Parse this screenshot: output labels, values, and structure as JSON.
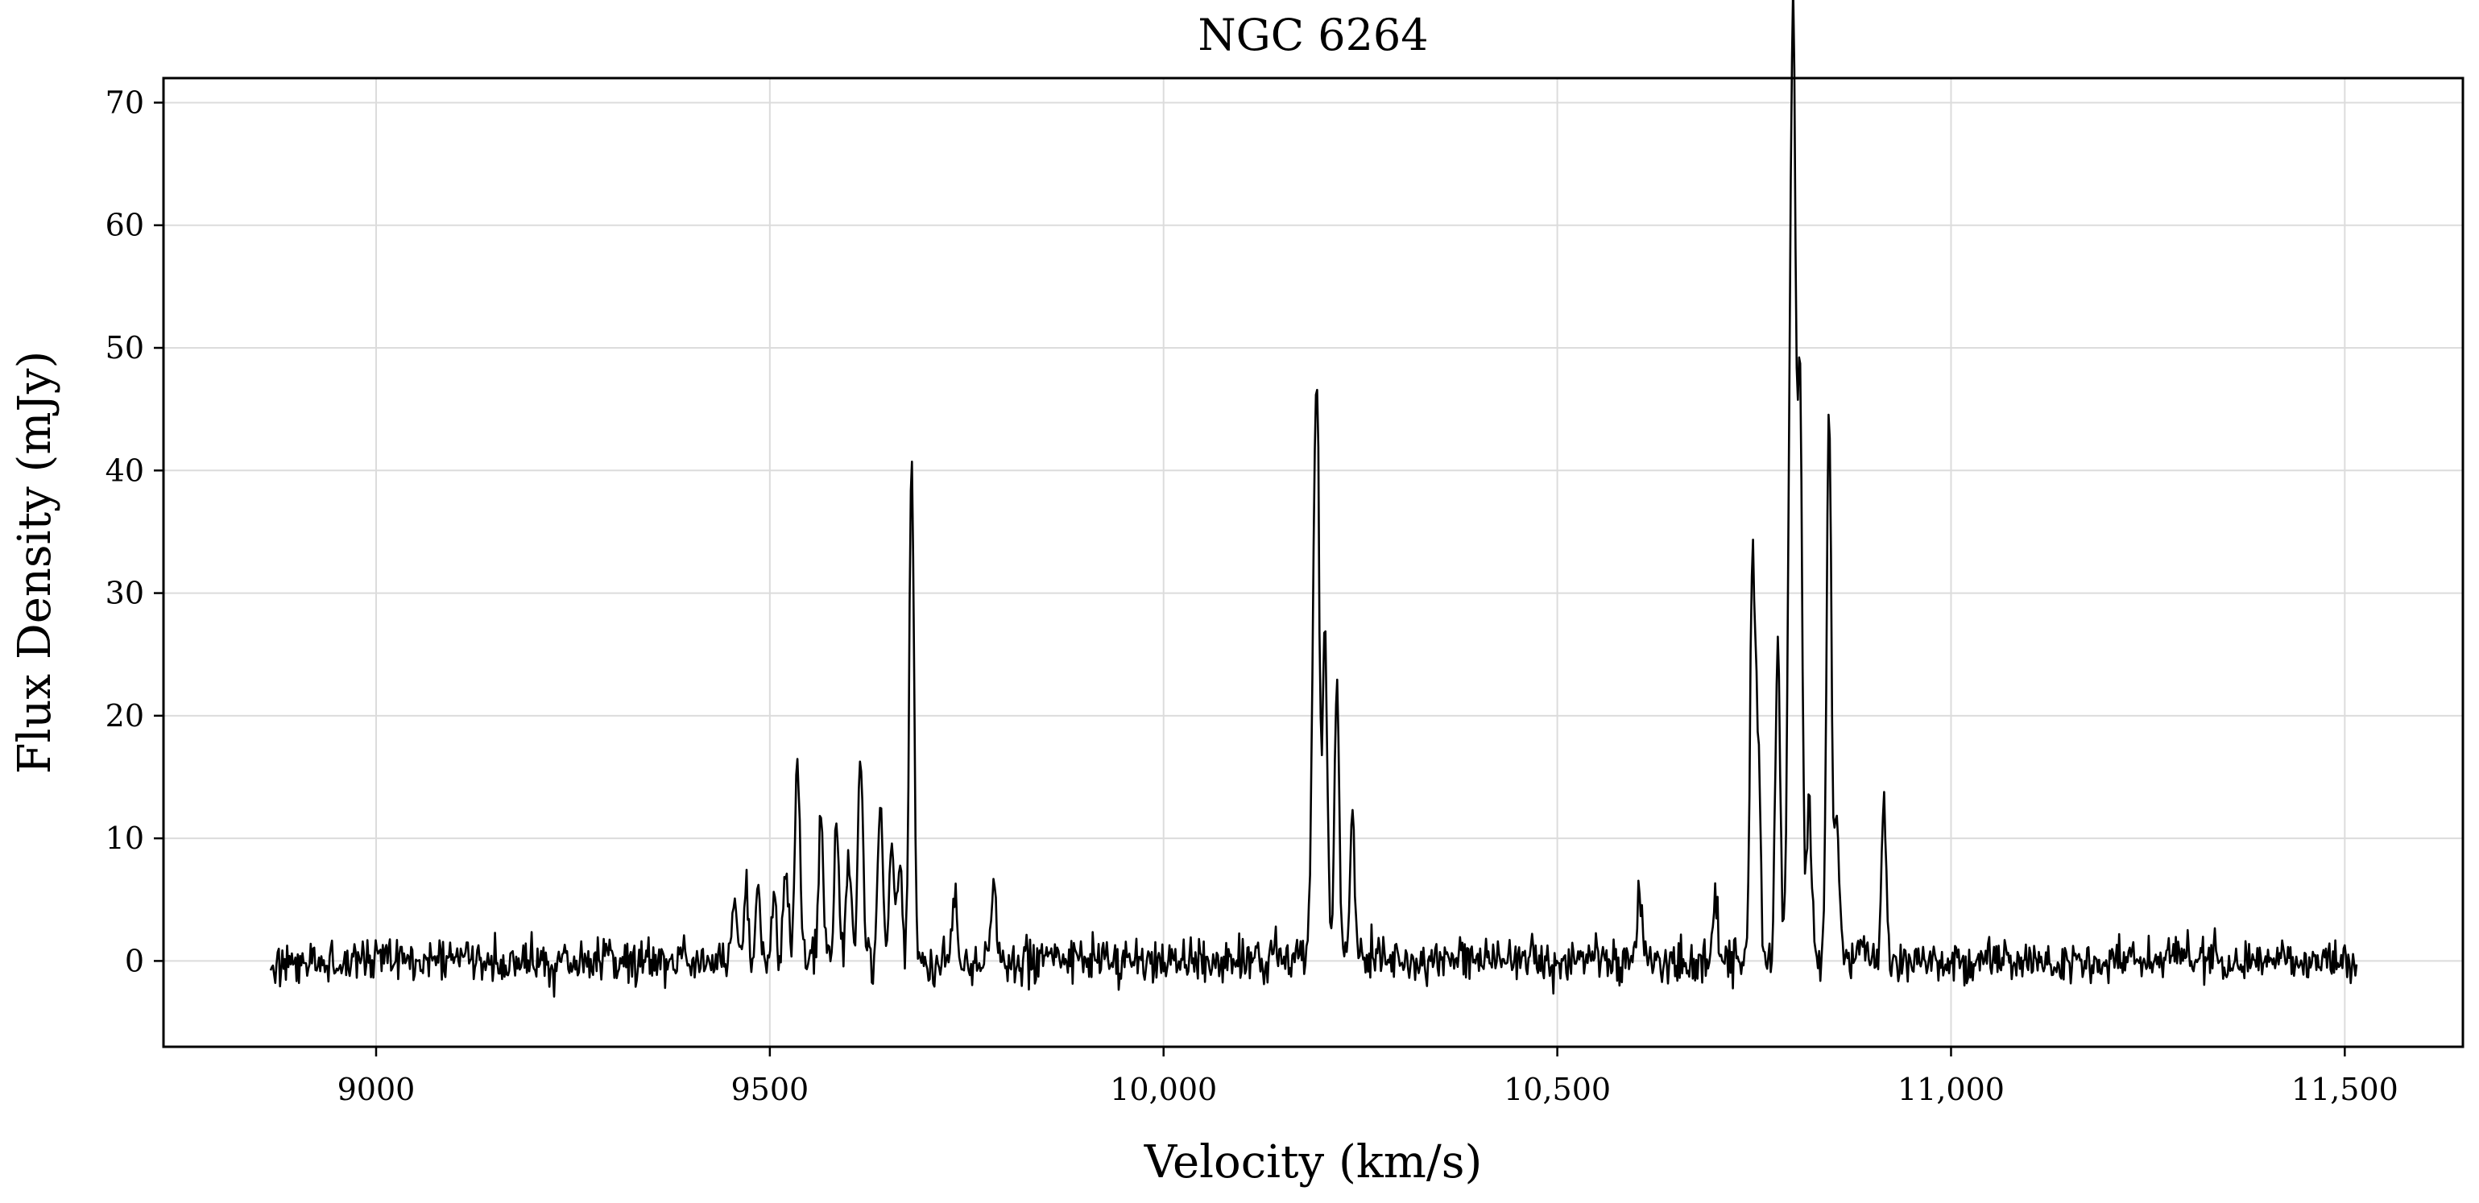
{
  "chart_data": {
    "type": "line",
    "title": "NGC 6264",
    "xlabel": "Velocity (km/s)",
    "ylabel": "Flux Density (mJy)",
    "xlim": [
      8730,
      11650
    ],
    "ylim": [
      -7,
      72
    ],
    "xticks": [
      9000,
      9500,
      10000,
      10500,
      11000,
      11500
    ],
    "xtick_labels": [
      "9000",
      "9500",
      "10,000",
      "10,500",
      "11,000",
      "11,500"
    ],
    "yticks": [
      0,
      10,
      20,
      30,
      40,
      50,
      60,
      70
    ],
    "ytick_labels": [
      "0",
      "10",
      "20",
      "30",
      "40",
      "50",
      "60",
      "70"
    ],
    "grid": true,
    "legend": "none",
    "series": [
      {
        "color": "#000000",
        "x_start": 8866,
        "x_end": 11515,
        "noise_rms": 0.9,
        "peaks": [
          {
            "x": 9455,
            "y": 5
          },
          {
            "x": 9470,
            "y": 6
          },
          {
            "x": 9485,
            "y": 7
          },
          {
            "x": 9505,
            "y": 6
          },
          {
            "x": 9520,
            "y": 7
          },
          {
            "x": 9535,
            "y": 17
          },
          {
            "x": 9565,
            "y": 12
          },
          {
            "x": 9585,
            "y": 11
          },
          {
            "x": 9600,
            "y": 9
          },
          {
            "x": 9615,
            "y": 16
          },
          {
            "x": 9640,
            "y": 14
          },
          {
            "x": 9655,
            "y": 9
          },
          {
            "x": 9665,
            "y": 8
          },
          {
            "x": 9680,
            "y": 41
          },
          {
            "x": 9735,
            "y": 6
          },
          {
            "x": 9785,
            "y": 7
          },
          {
            "x": 10190,
            "y": 19
          },
          {
            "x": 10195,
            "y": 43
          },
          {
            "x": 10205,
            "y": 27
          },
          {
            "x": 10220,
            "y": 23
          },
          {
            "x": 10240,
            "y": 13
          },
          {
            "x": 10605,
            "y": 6
          },
          {
            "x": 10700,
            "y": 5
          },
          {
            "x": 10748,
            "y": 33
          },
          {
            "x": 10755,
            "y": 17
          },
          {
            "x": 10780,
            "y": 26
          },
          {
            "x": 10795,
            "y": 33
          },
          {
            "x": 10800,
            "y": 68
          },
          {
            "x": 10808,
            "y": 48
          },
          {
            "x": 10820,
            "y": 13
          },
          {
            "x": 10845,
            "y": 45
          },
          {
            "x": 10855,
            "y": 12
          },
          {
            "x": 10915,
            "y": 13
          }
        ]
      }
    ]
  }
}
